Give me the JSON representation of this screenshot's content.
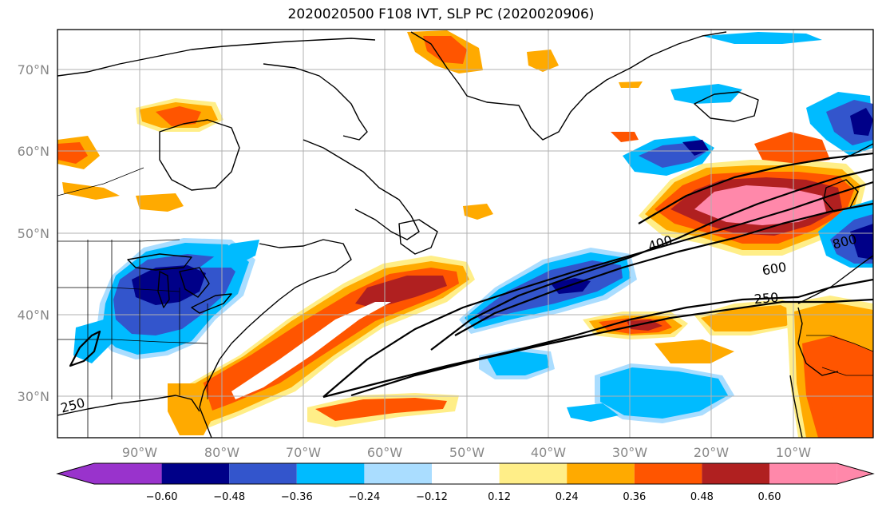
{
  "title": "2020020500 F108 IVT, SLP PC (2020020906)",
  "map": {
    "lon_labels": [
      "90°W",
      "80°W",
      "70°W",
      "60°W",
      "50°W",
      "40°W",
      "30°W",
      "20°W",
      "10°W"
    ],
    "lat_labels": [
      "70°N",
      "60°N",
      "50°N",
      "40°N",
      "30°N"
    ],
    "contour_labels": [
      "400",
      "600",
      "800",
      "250",
      "250"
    ]
  },
  "colorbar": {
    "ticks": [
      "−0.60",
      "−0.48",
      "−0.36",
      "−0.24",
      "−0.12",
      "0.12",
      "0.24",
      "0.36",
      "0.48",
      "0.60"
    ],
    "colors": [
      "#9933cc",
      "#000088",
      "#3355cc",
      "#00bbff",
      "#aaddff",
      "#ffffff",
      "#ffee88",
      "#ffaa00",
      "#ff5500",
      "#b02020",
      "#ff88aa"
    ]
  }
}
